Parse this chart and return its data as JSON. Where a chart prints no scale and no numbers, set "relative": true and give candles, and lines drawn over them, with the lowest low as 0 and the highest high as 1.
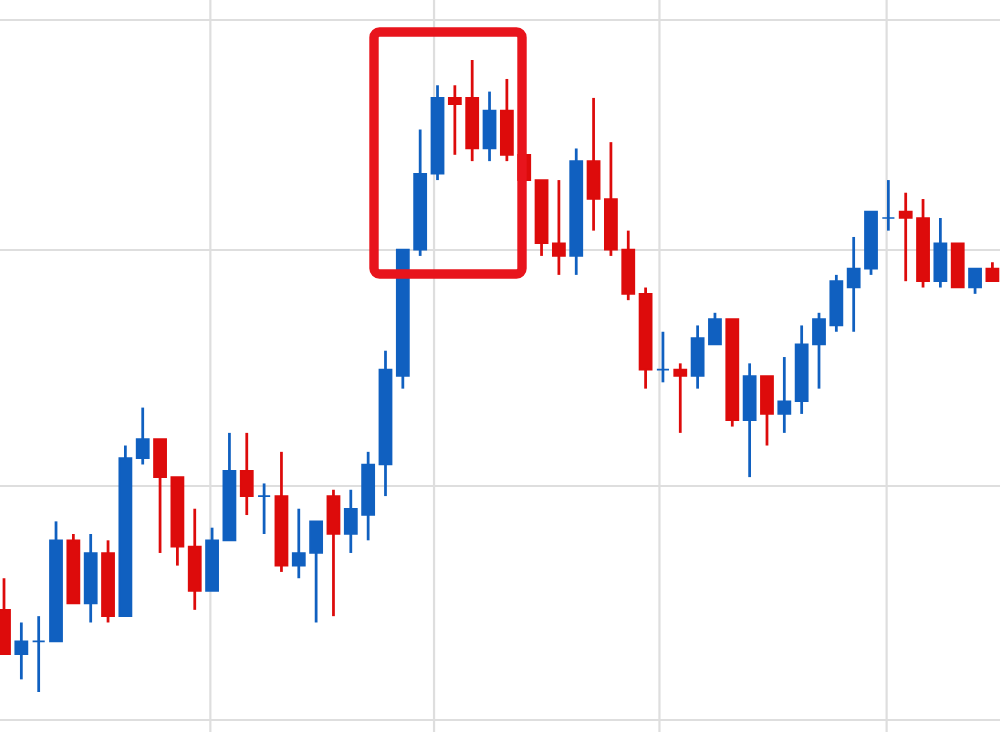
{
  "chart_data": {
    "type": "candlestick",
    "relative": true,
    "grid": true,
    "categories": [
      null,
      null,
      null,
      null,
      null,
      null,
      null,
      null,
      null,
      null,
      null,
      null,
      null,
      null,
      null,
      null,
      null,
      null,
      null,
      null,
      null,
      null,
      null,
      null,
      null,
      null,
      null,
      null,
      null,
      null,
      null,
      null,
      null,
      null,
      null,
      null,
      null,
      null,
      null,
      null,
      null,
      null,
      null,
      null,
      null,
      null,
      null,
      null,
      null,
      null,
      null,
      null,
      null,
      null,
      null,
      null,
      null,
      null
    ],
    "ohlc": [
      [
        0.13,
        0.18,
        0.06,
        0.06
      ],
      [
        0.06,
        0.11,
        0.02,
        0.08
      ],
      [
        0.08,
        0.12,
        0,
        0.08
      ],
      [
        0.08,
        0.27,
        0.08,
        0.24
      ],
      [
        0.24,
        0.25,
        0.14,
        0.14
      ],
      [
        0.14,
        0.25,
        0.11,
        0.22
      ],
      [
        0.22,
        0.24,
        0.11,
        0.12
      ],
      [
        0.12,
        0.39,
        0.12,
        0.37
      ],
      [
        0.37,
        0.45,
        0.36,
        0.4
      ],
      [
        0.4,
        0.4,
        0.22,
        0.34
      ],
      [
        0.34,
        0.34,
        0.2,
        0.23
      ],
      [
        0.23,
        0.29,
        0.13,
        0.16
      ],
      [
        0.16,
        0.26,
        0.16,
        0.24
      ],
      [
        0.24,
        0.41,
        0.24,
        0.35
      ],
      [
        0.35,
        0.41,
        0.28,
        0.31
      ],
      [
        0.31,
        0.33,
        0.25,
        0.31
      ],
      [
        0.31,
        0.38,
        0.19,
        0.2
      ],
      [
        0.2,
        0.29,
        0.18,
        0.22
      ],
      [
        0.22,
        0.27,
        0.11,
        0.27
      ],
      [
        0.31,
        0.32,
        0.12,
        0.25
      ],
      [
        0.25,
        0.32,
        0.22,
        0.29
      ],
      [
        0.28,
        0.38,
        0.24,
        0.36
      ],
      [
        0.36,
        0.54,
        0.31,
        0.51
      ],
      [
        0.5,
        0.7,
        0.48,
        0.7
      ],
      [
        0.7,
        0.89,
        0.69,
        0.82
      ],
      [
        0.82,
        0.96,
        0.81,
        0.94
      ],
      [
        0.94,
        0.96,
        0.85,
        0.93
      ],
      [
        0.94,
        1,
        0.84,
        0.86
      ],
      [
        0.86,
        0.95,
        0.84,
        0.92
      ],
      [
        0.92,
        0.97,
        0.84,
        0.85
      ],
      [
        0.85,
        0.89,
        0.81,
        0.81
      ],
      [
        0.81,
        0.81,
        0.69,
        0.71
      ],
      [
        0.71,
        0.81,
        0.66,
        0.69
      ],
      [
        0.69,
        0.86,
        0.66,
        0.84
      ],
      [
        0.84,
        0.94,
        0.73,
        0.78
      ],
      [
        0.78,
        0.87,
        0.69,
        0.7
      ],
      [
        0.7,
        0.73,
        0.62,
        0.63
      ],
      [
        0.63,
        0.64,
        0.48,
        0.51
      ],
      [
        0.51,
        0.57,
        0.49,
        0.51
      ],
      [
        0.51,
        0.52,
        0.41,
        0.5
      ],
      [
        0.5,
        0.58,
        0.48,
        0.56
      ],
      [
        0.55,
        0.6,
        0.55,
        0.59
      ],
      [
        0.59,
        0.59,
        0.42,
        0.43
      ],
      [
        0.43,
        0.52,
        0.34,
        0.5
      ],
      [
        0.5,
        0.5,
        0.39,
        0.44
      ],
      [
        0.44,
        0.53,
        0.41,
        0.46
      ],
      [
        0.46,
        0.58,
        0.44,
        0.55
      ],
      [
        0.55,
        0.6,
        0.48,
        0.59
      ],
      [
        0.58,
        0.66,
        0.57,
        0.65
      ],
      [
        0.64,
        0.72,
        0.57,
        0.67
      ],
      [
        0.67,
        0.76,
        0.66,
        0.76
      ],
      [
        0.75,
        0.81,
        0.73,
        0.75
      ],
      [
        0.76,
        0.79,
        0.65,
        0.75
      ],
      [
        0.75,
        0.78,
        0.64,
        0.65
      ],
      [
        0.65,
        0.75,
        0.64,
        0.71
      ],
      [
        0.71,
        0.71,
        0.64,
        0.64
      ],
      [
        0.64,
        0.67,
        0.63,
        0.67
      ],
      [
        0.67,
        0.68,
        0.65,
        0.65
      ]
    ],
    "colors": [
      "#dd0b0b",
      "#1060c0",
      "#1060c0",
      "#1060c0",
      "#dd0b0b",
      "#1060c0",
      "#dd0b0b",
      "#1060c0",
      "#1060c0",
      "#dd0b0b",
      "#dd0b0b",
      "#dd0b0b",
      "#1060c0",
      "#1060c0",
      "#dd0b0b",
      "#1060c0",
      "#dd0b0b",
      "#1060c0",
      "#1060c0",
      "#dd0b0b",
      "#1060c0",
      "#1060c0",
      "#1060c0",
      "#1060c0",
      "#1060c0",
      "#1060c0",
      "#dd0b0b",
      "#dd0b0b",
      "#1060c0",
      "#dd0b0b",
      "#dd0b0b",
      "#dd0b0b",
      "#dd0b0b",
      "#1060c0",
      "#dd0b0b",
      "#dd0b0b",
      "#dd0b0b",
      "#dd0b0b",
      "#1060c0",
      "#dd0b0b",
      "#1060c0",
      "#1060c0",
      "#dd0b0b",
      "#1060c0",
      "#dd0b0b",
      "#1060c0",
      "#1060c0",
      "#1060c0",
      "#1060c0",
      "#1060c0",
      "#1060c0",
      "#1060c0",
      "#dd0b0b",
      "#dd0b0b",
      "#1060c0",
      "#dd0b0b",
      "#1060c0",
      "#dd0b0b"
    ]
  }
}
